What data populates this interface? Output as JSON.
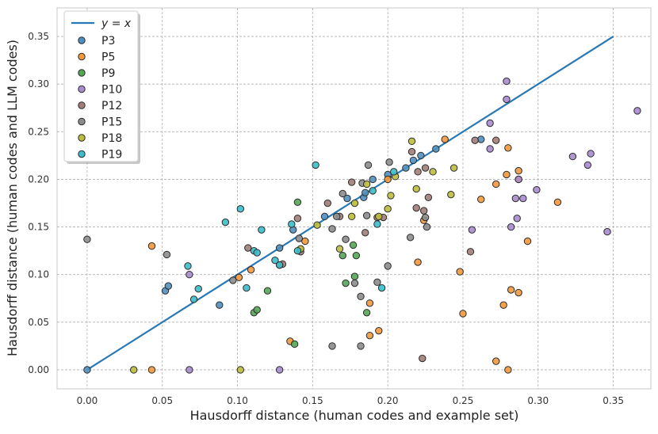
{
  "chart_data": {
    "type": "scatter",
    "title": "",
    "xlabel": "Hausdorff distance (human codes and example set)",
    "ylabel": "Hausdorff distance (human codes and LLM codes)",
    "xlim": [
      -0.02,
      0.375
    ],
    "ylim": [
      -0.02,
      0.38
    ],
    "x_ticks": [
      0.0,
      0.05,
      0.1,
      0.15,
      0.2,
      0.25,
      0.3,
      0.35
    ],
    "x_tick_labels": [
      "0.00",
      "0.05",
      "0.10",
      "0.15",
      "0.20",
      "0.25",
      "0.30",
      "0.35"
    ],
    "y_ticks": [
      0.0,
      0.05,
      0.1,
      0.15,
      0.2,
      0.25,
      0.3,
      0.35
    ],
    "y_tick_labels": [
      "0.00",
      "0.05",
      "0.10",
      "0.15",
      "0.20",
      "0.25",
      "0.30",
      "0.35"
    ],
    "grid": true,
    "legend_position": "top-left",
    "reference_line": {
      "label": "y = x",
      "label_display": "y = x",
      "x": [
        0.0,
        0.35
      ],
      "y": [
        0.0,
        0.35
      ],
      "color": "#2878b5"
    },
    "series": [
      {
        "name": "P3",
        "color": "#4f8fbf",
        "points": [
          [
            0.0,
            0.0
          ],
          [
            0.052,
            0.083
          ],
          [
            0.054,
            0.088
          ],
          [
            0.088,
            0.068
          ],
          [
            0.128,
            0.128
          ],
          [
            0.137,
            0.147
          ],
          [
            0.158,
            0.161
          ],
          [
            0.173,
            0.18
          ],
          [
            0.184,
            0.181
          ],
          [
            0.185,
            0.186
          ],
          [
            0.19,
            0.2
          ],
          [
            0.2,
            0.205
          ],
          [
            0.212,
            0.212
          ],
          [
            0.217,
            0.22
          ],
          [
            0.222,
            0.225
          ],
          [
            0.232,
            0.232
          ],
          [
            0.262,
            0.242
          ]
        ]
      },
      {
        "name": "P5",
        "color": "#f2993d",
        "points": [
          [
            0.043,
            0.13
          ],
          [
            0.043,
            0.0
          ],
          [
            0.101,
            0.097
          ],
          [
            0.109,
            0.105
          ],
          [
            0.135,
            0.03
          ],
          [
            0.145,
            0.135
          ],
          [
            0.188,
            0.036
          ],
          [
            0.188,
            0.07
          ],
          [
            0.194,
            0.041
          ],
          [
            0.2,
            0.2
          ],
          [
            0.22,
            0.113
          ],
          [
            0.224,
            0.157
          ],
          [
            0.238,
            0.242
          ],
          [
            0.248,
            0.103
          ],
          [
            0.25,
            0.059
          ],
          [
            0.262,
            0.179
          ],
          [
            0.272,
            0.195
          ],
          [
            0.272,
            0.009
          ],
          [
            0.277,
            0.068
          ],
          [
            0.279,
            0.205
          ],
          [
            0.28,
            0.233
          ],
          [
            0.28,
            0.0
          ],
          [
            0.282,
            0.084
          ],
          [
            0.287,
            0.209
          ],
          [
            0.287,
            0.081
          ],
          [
            0.287,
            0.2
          ],
          [
            0.293,
            0.135
          ],
          [
            0.313,
            0.176
          ]
        ]
      },
      {
        "name": "P9",
        "color": "#54a655",
        "points": [
          [
            0.111,
            0.06
          ],
          [
            0.113,
            0.063
          ],
          [
            0.12,
            0.083
          ],
          [
            0.138,
            0.027
          ],
          [
            0.14,
            0.176
          ],
          [
            0.17,
            0.12
          ],
          [
            0.172,
            0.091
          ],
          [
            0.177,
            0.131
          ],
          [
            0.178,
            0.098
          ],
          [
            0.179,
            0.12
          ],
          [
            0.186,
            0.06
          ]
        ]
      },
      {
        "name": "P10",
        "color": "#a98bcf",
        "points": [
          [
            0.068,
            0.0
          ],
          [
            0.068,
            0.1
          ],
          [
            0.128,
            0.0
          ],
          [
            0.256,
            0.147
          ],
          [
            0.268,
            0.259
          ],
          [
            0.268,
            0.232
          ],
          [
            0.279,
            0.303
          ],
          [
            0.279,
            0.284
          ],
          [
            0.282,
            0.15
          ],
          [
            0.285,
            0.18
          ],
          [
            0.286,
            0.159
          ],
          [
            0.287,
            0.2
          ],
          [
            0.29,
            0.18
          ],
          [
            0.299,
            0.189
          ],
          [
            0.323,
            0.224
          ],
          [
            0.333,
            0.215
          ],
          [
            0.335,
            0.227
          ],
          [
            0.346,
            0.145
          ],
          [
            0.366,
            0.272
          ]
        ]
      },
      {
        "name": "P12",
        "color": "#a07d78",
        "points": [
          [
            0.107,
            0.128
          ],
          [
            0.13,
            0.111
          ],
          [
            0.14,
            0.159
          ],
          [
            0.142,
            0.124
          ],
          [
            0.16,
            0.175
          ],
          [
            0.168,
            0.161
          ],
          [
            0.176,
            0.197
          ],
          [
            0.185,
            0.144
          ],
          [
            0.193,
            0.16
          ],
          [
            0.197,
            0.16
          ],
          [
            0.216,
            0.229
          ],
          [
            0.219,
            0.17
          ],
          [
            0.22,
            0.208
          ],
          [
            0.224,
            0.167
          ],
          [
            0.225,
            0.212
          ],
          [
            0.227,
            0.181
          ],
          [
            0.255,
            0.124
          ],
          [
            0.258,
            0.241
          ],
          [
            0.272,
            0.241
          ],
          [
            0.223,
            0.012
          ]
        ]
      },
      {
        "name": "P15",
        "color": "#8c8c8c",
        "points": [
          [
            0.0,
            0.137
          ],
          [
            0.053,
            0.121
          ],
          [
            0.097,
            0.094
          ],
          [
            0.128,
            0.11
          ],
          [
            0.141,
            0.138
          ],
          [
            0.163,
            0.148
          ],
          [
            0.163,
            0.025
          ],
          [
            0.166,
            0.161
          ],
          [
            0.17,
            0.185
          ],
          [
            0.172,
            0.137
          ],
          [
            0.178,
            0.091
          ],
          [
            0.182,
            0.025
          ],
          [
            0.182,
            0.077
          ],
          [
            0.183,
            0.196
          ],
          [
            0.186,
            0.162
          ],
          [
            0.187,
            0.215
          ],
          [
            0.193,
            0.092
          ],
          [
            0.2,
            0.109
          ],
          [
            0.201,
            0.218
          ],
          [
            0.215,
            0.139
          ],
          [
            0.225,
            0.16
          ],
          [
            0.226,
            0.15
          ]
        ]
      },
      {
        "name": "P18",
        "color": "#bcbd3e",
        "points": [
          [
            0.031,
            0.0
          ],
          [
            0.102,
            0.0
          ],
          [
            0.142,
            0.127
          ],
          [
            0.153,
            0.152
          ],
          [
            0.168,
            0.127
          ],
          [
            0.176,
            0.161
          ],
          [
            0.178,
            0.175
          ],
          [
            0.186,
            0.195
          ],
          [
            0.194,
            0.161
          ],
          [
            0.2,
            0.169
          ],
          [
            0.202,
            0.183
          ],
          [
            0.205,
            0.203
          ],
          [
            0.216,
            0.24
          ],
          [
            0.219,
            0.19
          ],
          [
            0.23,
            0.208
          ],
          [
            0.242,
            0.184
          ],
          [
            0.244,
            0.212
          ]
        ]
      },
      {
        "name": "P19",
        "color": "#3bbdcb",
        "points": [
          [
            0.067,
            0.109
          ],
          [
            0.071,
            0.074
          ],
          [
            0.074,
            0.085
          ],
          [
            0.092,
            0.155
          ],
          [
            0.102,
            0.169
          ],
          [
            0.106,
            0.086
          ],
          [
            0.111,
            0.125
          ],
          [
            0.113,
            0.123
          ],
          [
            0.116,
            0.147
          ],
          [
            0.125,
            0.115
          ],
          [
            0.128,
            0.11
          ],
          [
            0.136,
            0.153
          ],
          [
            0.14,
            0.125
          ],
          [
            0.152,
            0.215
          ],
          [
            0.19,
            0.188
          ],
          [
            0.193,
            0.153
          ],
          [
            0.196,
            0.086
          ],
          [
            0.204,
            0.208
          ]
        ]
      }
    ]
  }
}
